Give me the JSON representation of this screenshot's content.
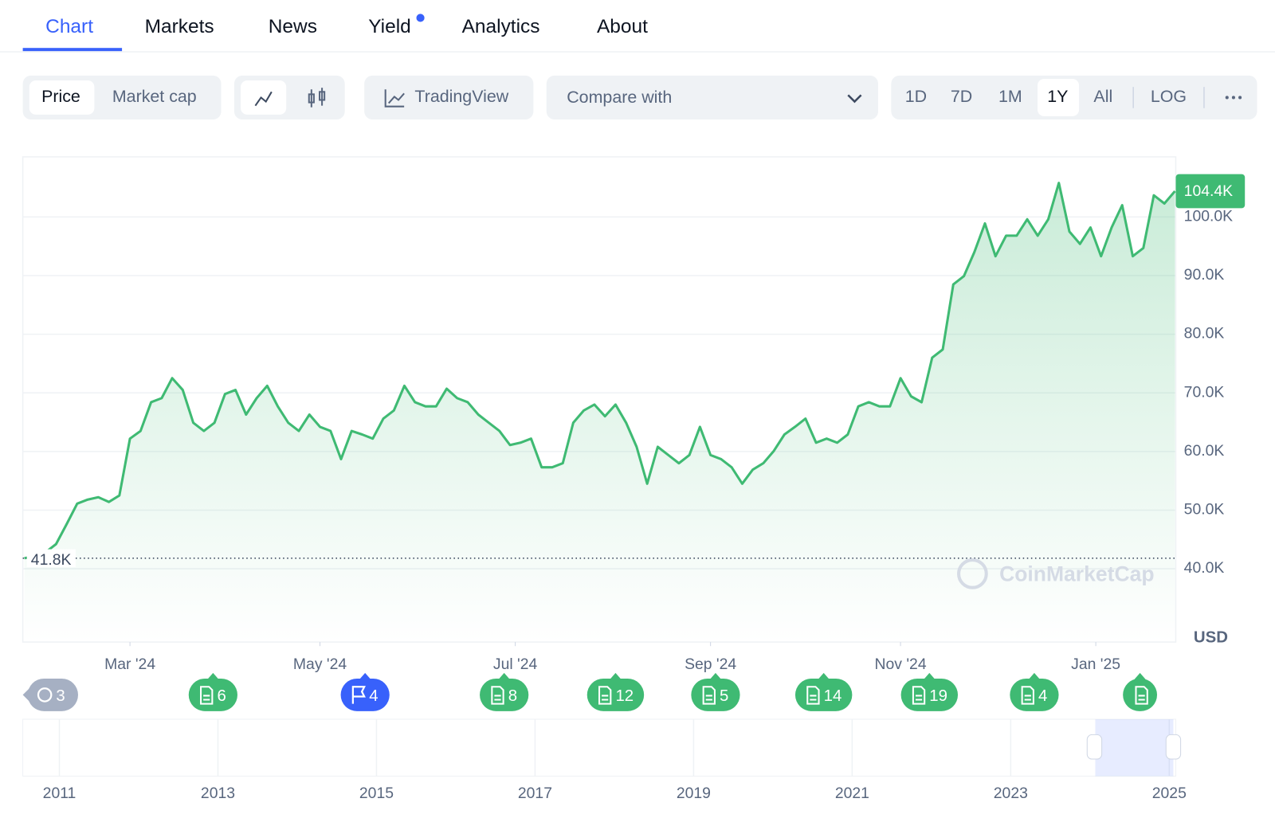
{
  "tabs": [
    "Chart",
    "Markets",
    "News",
    "Yield",
    "Analytics",
    "About"
  ],
  "toolbar": {
    "metric": [
      "Price",
      "Market cap"
    ],
    "tradingview": "TradingView",
    "compare": "Compare with",
    "ranges": [
      "1D",
      "7D",
      "1M",
      "1Y",
      "All"
    ],
    "log": "LOG"
  },
  "currency": "USD",
  "watermark": "CoinMarketCap",
  "events": [
    3,
    6,
    4,
    8,
    12,
    5,
    14,
    19,
    4,
    null
  ],
  "navigator_years": [
    "2011",
    "2013",
    "2015",
    "2017",
    "2019",
    "2021",
    "2023",
    "2025"
  ],
  "chart_data": {
    "type": "area",
    "color": "#3fba73",
    "values": [
      41800,
      42100,
      42800,
      44200,
      47600,
      51100,
      51800,
      52200,
      51400,
      52500,
      62200,
      63500,
      68400,
      69100,
      72500,
      70500,
      64900,
      63500,
      64900,
      69800,
      70500,
      66300,
      69100,
      71200,
      67700,
      64900,
      63500,
      66300,
      64200,
      63500,
      58700,
      63500,
      62900,
      62200,
      65600,
      67000,
      71200,
      68400,
      67700,
      67700,
      70700,
      69100,
      68400,
      66300,
      64900,
      63500,
      61100,
      61500,
      62200,
      57300,
      57300,
      58000,
      64900,
      67000,
      68000,
      66000,
      68000,
      64900,
      60800,
      54500,
      60800,
      59400,
      58000,
      59400,
      64200,
      59400,
      58700,
      57300,
      54500,
      56900,
      58000,
      60100,
      62900,
      64200,
      65600,
      61500,
      62200,
      61500,
      62900,
      67700,
      68400,
      67700,
      67700,
      72500,
      69400,
      68400,
      76000,
      77400,
      88500,
      89900,
      94000,
      98900,
      93300,
      96800,
      96800,
      99600,
      96800,
      99600,
      105800,
      97500,
      95400,
      98200,
      93300,
      98200,
      102000,
      93300,
      94700,
      103700,
      102300,
      104400
    ],
    "xlim": [
      0,
      109
    ],
    "xticks": [
      {
        "value": 10,
        "label": "Mar '24"
      },
      {
        "value": 28,
        "label": "May '24"
      },
      {
        "value": 46.5,
        "label": "Jul '24"
      },
      {
        "value": 65,
        "label": "Sep '24"
      },
      {
        "value": 83,
        "label": "Nov '24"
      },
      {
        "value": 101.5,
        "label": "Jan '25"
      }
    ],
    "ylim": [
      27500,
      110250
    ],
    "yticks": [
      {
        "value": 40000,
        "label": "40.0K"
      },
      {
        "value": 50000,
        "label": "50.0K"
      },
      {
        "value": 60000,
        "label": "60.0K"
      },
      {
        "value": 70000,
        "label": "70.0K"
      },
      {
        "value": 80000,
        "label": "80.0K"
      },
      {
        "value": 90000,
        "label": "90.0K"
      },
      {
        "value": 100000,
        "label": "100.0K"
      }
    ],
    "grid": true,
    "current": {
      "value": 104400,
      "label": "104.4K"
    },
    "low": {
      "value": 41800,
      "label": "41.8K"
    }
  }
}
